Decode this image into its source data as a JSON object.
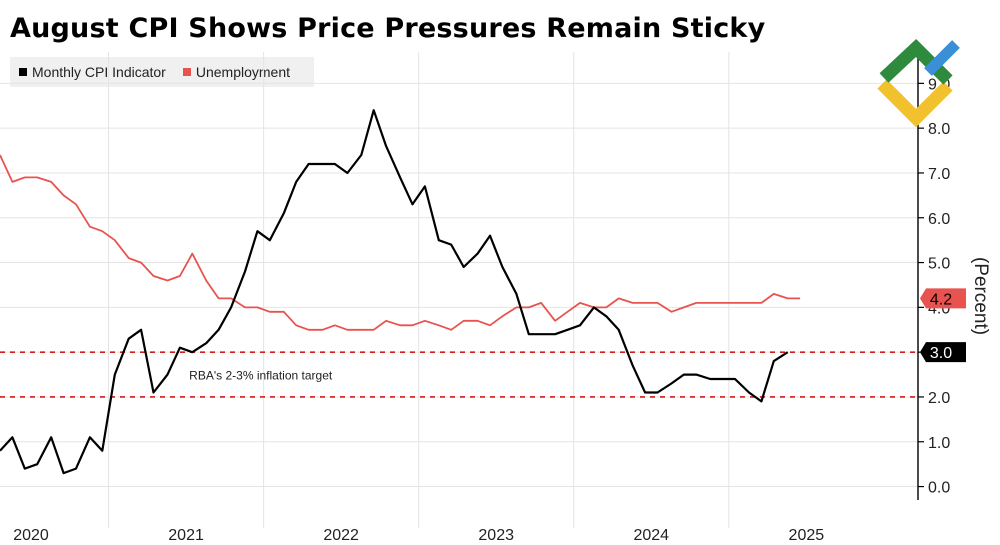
{
  "chart_data": {
    "type": "line",
    "title": "August CPI Shows Price Pressures Remain Sticky",
    "ylabel": "(Percent)",
    "ylim": [
      -0.3,
      9.7
    ],
    "yticks": [
      0,
      1,
      2,
      3,
      4,
      5,
      6,
      7,
      8,
      9
    ],
    "ytick_labels": [
      "0.0",
      "1.0",
      "2.0",
      "3.0",
      "4.0",
      "5.0",
      "6.0",
      "7.0",
      "8.0",
      "9.0"
    ],
    "xlim": [
      2019.8,
      2025.72
    ],
    "year_labels": [
      {
        "label": "2020",
        "x": 2020.0
      },
      {
        "label": "2021",
        "x": 2021.0
      },
      {
        "label": "2022",
        "x": 2022.0
      },
      {
        "label": "2023",
        "x": 2023.0
      },
      {
        "label": "2024",
        "x": 2024.0
      },
      {
        "label": "2025",
        "x": 2025.0
      }
    ],
    "x_gridlines": [
      2020.5,
      2021.5,
      2022.5,
      2023.5,
      2024.5
    ],
    "series": [
      {
        "name": "Monthly CPI Indicator",
        "color": "#000000",
        "points": [
          [
            2019.8,
            0.8
          ],
          [
            2019.88,
            1.1
          ],
          [
            2019.96,
            0.4
          ],
          [
            2020.04,
            0.5
          ],
          [
            2020.13,
            1.1
          ],
          [
            2020.21,
            0.3
          ],
          [
            2020.29,
            0.4
          ],
          [
            2020.38,
            1.1
          ],
          [
            2020.46,
            0.8
          ],
          [
            2020.54,
            2.5
          ],
          [
            2020.63,
            3.3
          ],
          [
            2020.71,
            3.5
          ],
          [
            2020.79,
            2.1
          ],
          [
            2020.88,
            2.5
          ],
          [
            2020.96,
            3.1
          ],
          [
            2021.04,
            3.0
          ],
          [
            2021.13,
            3.2
          ],
          [
            2021.21,
            3.5
          ],
          [
            2021.29,
            4.0
          ],
          [
            2021.38,
            4.8
          ],
          [
            2021.46,
            5.7
          ],
          [
            2021.54,
            5.5
          ],
          [
            2021.63,
            6.1
          ],
          [
            2021.71,
            6.8
          ],
          [
            2021.79,
            7.2
          ],
          [
            2021.88,
            7.2
          ],
          [
            2021.96,
            7.2
          ],
          [
            2022.04,
            7.0
          ],
          [
            2022.13,
            7.4
          ],
          [
            2022.21,
            8.4
          ],
          [
            2022.29,
            7.6
          ],
          [
            2022.38,
            6.9
          ],
          [
            2022.46,
            6.3
          ],
          [
            2022.54,
            6.7
          ],
          [
            2022.63,
            5.5
          ],
          [
            2022.71,
            5.4
          ],
          [
            2022.79,
            4.9
          ],
          [
            2022.88,
            5.2
          ],
          [
            2022.96,
            5.6
          ],
          [
            2023.04,
            4.9
          ],
          [
            2023.13,
            4.3
          ],
          [
            2023.21,
            3.4
          ],
          [
            2023.29,
            3.4
          ],
          [
            2023.38,
            3.4
          ],
          [
            2023.46,
            3.5
          ],
          [
            2023.54,
            3.6
          ],
          [
            2023.63,
            4.0
          ],
          [
            2023.71,
            3.8
          ],
          [
            2023.79,
            3.5
          ],
          [
            2023.88,
            2.7
          ],
          [
            2023.96,
            2.1
          ],
          [
            2024.04,
            2.1
          ],
          [
            2024.13,
            2.3
          ],
          [
            2024.21,
            2.5
          ],
          [
            2024.29,
            2.5
          ],
          [
            2024.38,
            2.4
          ],
          [
            2024.46,
            2.4
          ],
          [
            2024.54,
            2.4
          ],
          [
            2024.63,
            2.1
          ],
          [
            2024.71,
            1.9
          ],
          [
            2024.79,
            2.8
          ],
          [
            2024.88,
            3.0
          ]
        ]
      },
      {
        "name": "Unemployment",
        "color": "#e8534f",
        "points": [
          [
            2019.8,
            7.4
          ],
          [
            2019.88,
            6.8
          ],
          [
            2019.96,
            6.9
          ],
          [
            2020.04,
            6.9
          ],
          [
            2020.13,
            6.8
          ],
          [
            2020.21,
            6.5
          ],
          [
            2020.29,
            6.3
          ],
          [
            2020.38,
            5.8
          ],
          [
            2020.46,
            5.7
          ],
          [
            2020.54,
            5.5
          ],
          [
            2020.63,
            5.1
          ],
          [
            2020.71,
            5.0
          ],
          [
            2020.79,
            4.7
          ],
          [
            2020.88,
            4.6
          ],
          [
            2020.96,
            4.7
          ],
          [
            2021.04,
            5.2
          ],
          [
            2021.13,
            4.6
          ],
          [
            2021.21,
            4.2
          ],
          [
            2021.29,
            4.2
          ],
          [
            2021.38,
            4.0
          ],
          [
            2021.46,
            4.0
          ],
          [
            2021.54,
            3.9
          ],
          [
            2021.63,
            3.9
          ],
          [
            2021.71,
            3.6
          ],
          [
            2021.79,
            3.5
          ],
          [
            2021.88,
            3.5
          ],
          [
            2021.96,
            3.6
          ],
          [
            2022.04,
            3.5
          ],
          [
            2022.13,
            3.5
          ],
          [
            2022.21,
            3.5
          ],
          [
            2022.29,
            3.7
          ],
          [
            2022.38,
            3.6
          ],
          [
            2022.46,
            3.6
          ],
          [
            2022.54,
            3.7
          ],
          [
            2022.63,
            3.6
          ],
          [
            2022.71,
            3.5
          ],
          [
            2022.79,
            3.7
          ],
          [
            2022.88,
            3.7
          ],
          [
            2022.96,
            3.6
          ],
          [
            2023.04,
            3.8
          ],
          [
            2023.13,
            4.0
          ],
          [
            2023.21,
            4.0
          ],
          [
            2023.29,
            4.1
          ],
          [
            2023.38,
            3.7
          ],
          [
            2023.46,
            3.9
          ],
          [
            2023.54,
            4.1
          ],
          [
            2023.63,
            4.0
          ],
          [
            2023.71,
            4.0
          ],
          [
            2023.79,
            4.2
          ],
          [
            2023.88,
            4.1
          ],
          [
            2023.96,
            4.1
          ],
          [
            2024.04,
            4.1
          ],
          [
            2024.13,
            3.9
          ],
          [
            2024.21,
            4.0
          ],
          [
            2024.29,
            4.1
          ],
          [
            2024.38,
            4.1
          ],
          [
            2024.46,
            4.1
          ],
          [
            2024.54,
            4.1
          ],
          [
            2024.63,
            4.1
          ],
          [
            2024.71,
            4.1
          ],
          [
            2024.79,
            4.3
          ],
          [
            2024.88,
            4.2
          ],
          [
            2024.96,
            4.2
          ]
        ]
      }
    ],
    "reference_lines": [
      {
        "y": 3.0,
        "color": "#cc1f1f",
        "style": "dashed"
      },
      {
        "y": 2.0,
        "color": "#cc1f1f",
        "style": "dashed"
      }
    ],
    "annotations": [
      {
        "text": "RBA's 2-3% inflation target",
        "x": 2021.02,
        "y": 2.5
      }
    ],
    "last_value_labels": [
      {
        "series": "Unemployment",
        "text": "4.2",
        "y": 4.2,
        "bg": "#e8534f",
        "fg": "#000000"
      },
      {
        "series": "Monthly CPI Indicator",
        "text": "3.0",
        "y": 3.0,
        "bg": "#000000",
        "fg": "#ffffff"
      }
    ]
  },
  "legend": [
    {
      "label": "Monthly CPI Indicator",
      "color": "#000000"
    },
    {
      "label": "Unemployment",
      "color": "#e8534f"
    }
  ],
  "logo": {
    "name": "LiteFinance logo",
    "colors": [
      "#2e8b3e",
      "#f2c12e",
      "#3a8fd6"
    ]
  }
}
